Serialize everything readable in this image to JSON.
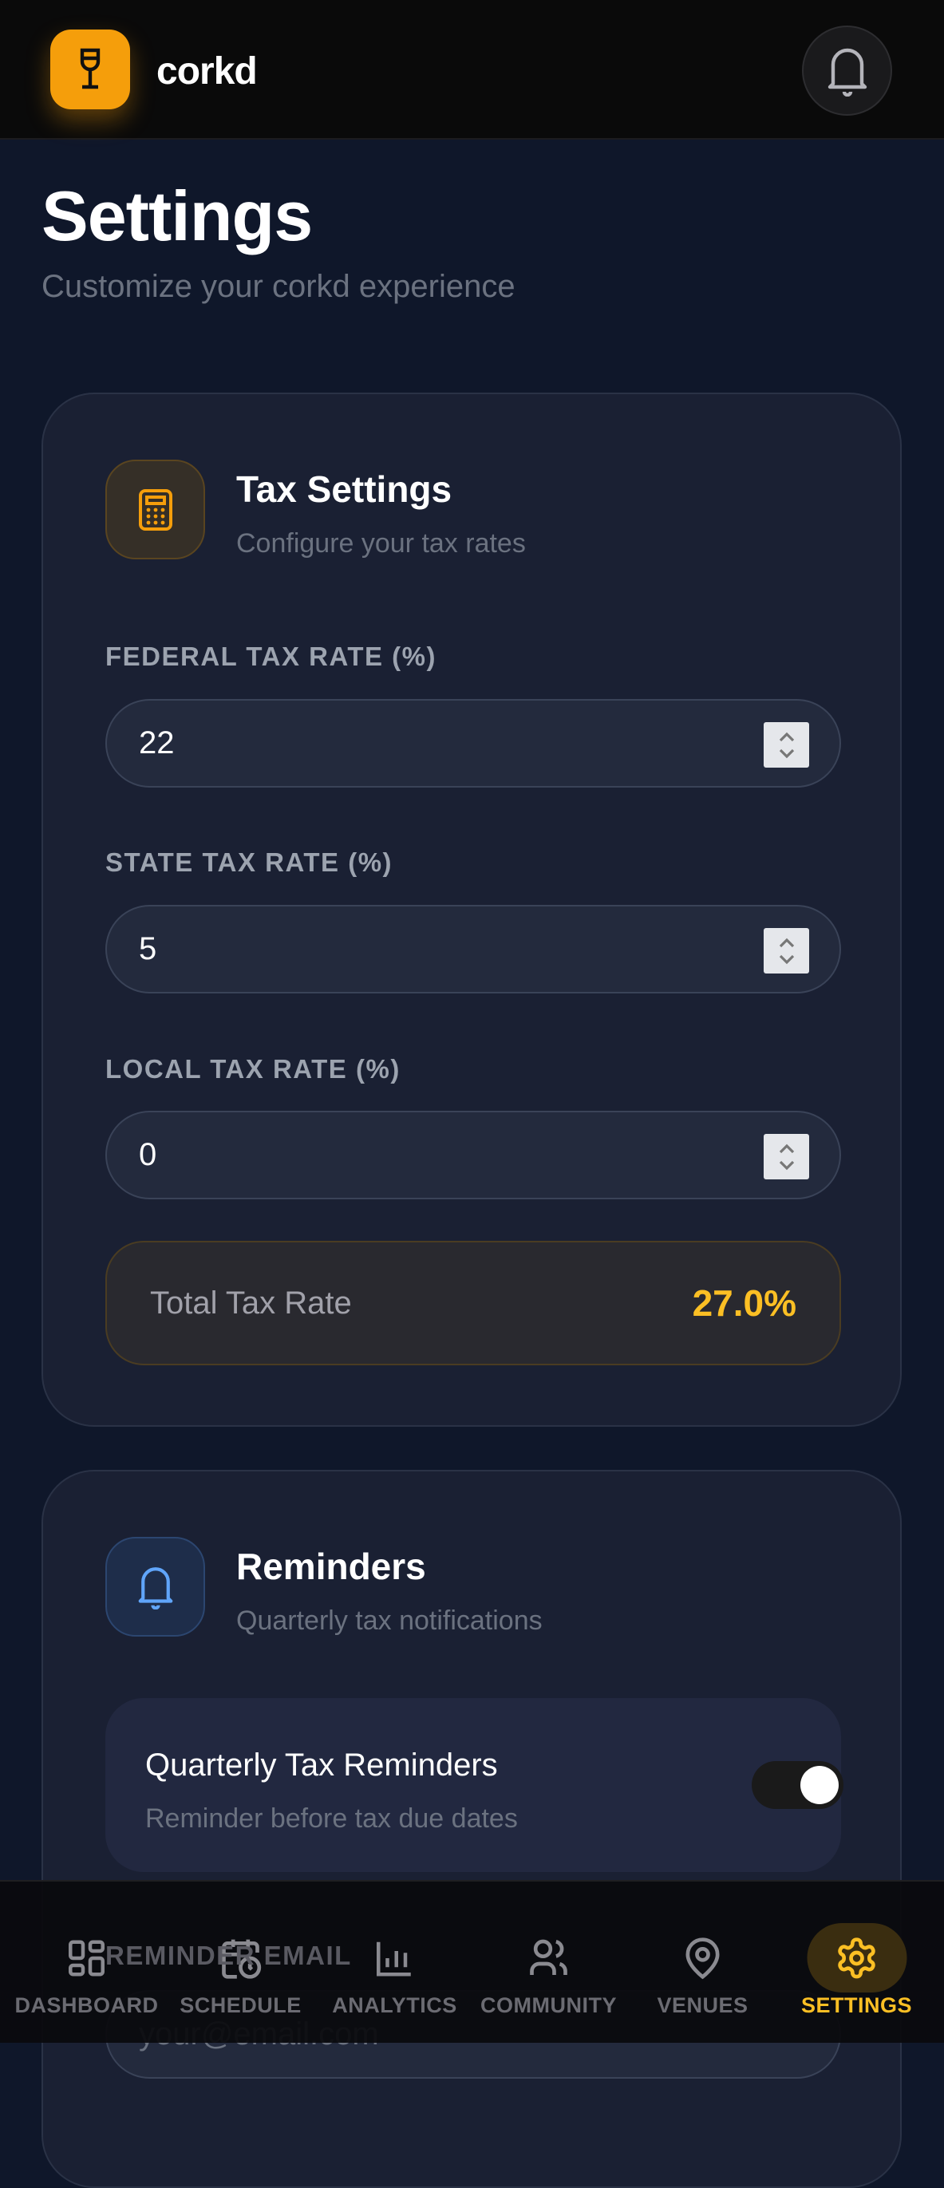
{
  "header": {
    "brand": "corkd",
    "logo_icon": "wine-glass-icon",
    "notification_icon": "bell-icon"
  },
  "page": {
    "title": "Settings",
    "subtitle": "Customize your corkd experience"
  },
  "tax_settings": {
    "title": "Tax Settings",
    "subtitle": "Configure your tax rates",
    "icon": "calculator-icon",
    "accent": "#f59e0b",
    "fields": [
      {
        "label": "FEDERAL TAX RATE (%)",
        "value": "22"
      },
      {
        "label": "STATE TAX RATE (%)",
        "value": "5"
      },
      {
        "label": "LOCAL TAX RATE (%)",
        "value": "0"
      }
    ],
    "total_label": "Total Tax Rate",
    "total_value": "27.0%"
  },
  "reminders": {
    "title": "Reminders",
    "subtitle": "Quarterly tax notifications",
    "icon": "bell-icon",
    "accent": "#60a5fa",
    "toggle": {
      "title": "Quarterly Tax Reminders",
      "subtitle": "Reminder before tax due dates",
      "on": true
    },
    "email_label": "REMINDER EMAIL",
    "email_placeholder": "your@email.com"
  },
  "nav": {
    "items": [
      {
        "label": "DASHBOARD",
        "icon": "dashboard-grid-icon"
      },
      {
        "label": "SCHEDULE",
        "icon": "calendar-clock-icon"
      },
      {
        "label": "ANALYTICS",
        "icon": "bar-chart-icon"
      },
      {
        "label": "COMMUNITY",
        "icon": "users-icon"
      },
      {
        "label": "VENUES",
        "icon": "map-pin-icon"
      },
      {
        "label": "SETTINGS",
        "icon": "gear-icon",
        "active": true
      }
    ]
  }
}
